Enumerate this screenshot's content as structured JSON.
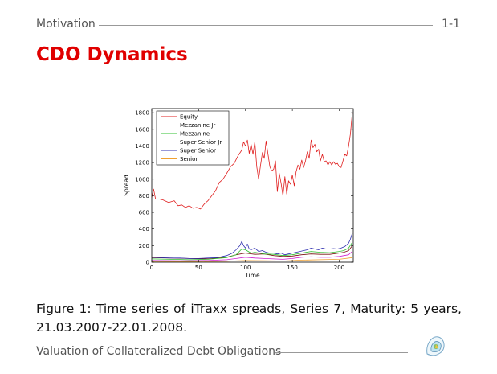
{
  "header": {
    "section": "Motivation",
    "page_number": "1-1"
  },
  "slide": {
    "title": "CDO Dynamics"
  },
  "figure": {
    "caption": "Figure 1: Time series of iTraxx spreads, Series 7, Maturity: 5 years, 21.03.2007-22.01.2008."
  },
  "footer": {
    "title": "Valuation of Collateralized Debt Obligations"
  },
  "colors": {
    "title": "#e00000",
    "equity": "#e02020",
    "mezzanine_jr": "#7a1010",
    "mezzanine": "#30c030",
    "super_senior_jr": "#d020d0",
    "super_senior": "#3030b0",
    "senior": "#f0a030"
  },
  "chart_data": {
    "type": "line",
    "xlabel": "Time",
    "ylabel": "Spread",
    "xlim": [
      0,
      215
    ],
    "ylim": [
      0,
      1850
    ],
    "xticks": [
      0,
      50,
      100,
      150,
      200
    ],
    "yticks": [
      0,
      200,
      400,
      600,
      800,
      1000,
      1200,
      1400,
      1600,
      1800
    ],
    "grid": false,
    "legend_position": "top-left",
    "series": [
      {
        "name": "Equity",
        "color": "#e02020",
        "points": [
          [
            0,
            780
          ],
          [
            2,
            880
          ],
          [
            4,
            760
          ],
          [
            8,
            760
          ],
          [
            12,
            750
          ],
          [
            18,
            720
          ],
          [
            24,
            740
          ],
          [
            28,
            680
          ],
          [
            32,
            690
          ],
          [
            36,
            660
          ],
          [
            40,
            680
          ],
          [
            44,
            650
          ],
          [
            48,
            660
          ],
          [
            52,
            640
          ],
          [
            56,
            700
          ],
          [
            60,
            740
          ],
          [
            64,
            800
          ],
          [
            68,
            860
          ],
          [
            72,
            960
          ],
          [
            76,
            1000
          ],
          [
            80,
            1070
          ],
          [
            84,
            1150
          ],
          [
            88,
            1190
          ],
          [
            92,
            1280
          ],
          [
            96,
            1350
          ],
          [
            98,
            1450
          ],
          [
            100,
            1400
          ],
          [
            102,
            1470
          ],
          [
            104,
            1310
          ],
          [
            106,
            1420
          ],
          [
            108,
            1300
          ],
          [
            110,
            1450
          ],
          [
            112,
            1150
          ],
          [
            114,
            1000
          ],
          [
            116,
            1160
          ],
          [
            118,
            1320
          ],
          [
            120,
            1250
          ],
          [
            122,
            1460
          ],
          [
            124,
            1300
          ],
          [
            126,
            1150
          ],
          [
            128,
            1100
          ],
          [
            130,
            1120
          ],
          [
            132,
            1220
          ],
          [
            134,
            850
          ],
          [
            136,
            1070
          ],
          [
            138,
            950
          ],
          [
            140,
            800
          ],
          [
            142,
            1030
          ],
          [
            144,
            820
          ],
          [
            146,
            980
          ],
          [
            148,
            940
          ],
          [
            150,
            1050
          ],
          [
            152,
            920
          ],
          [
            154,
            1090
          ],
          [
            156,
            1170
          ],
          [
            158,
            1120
          ],
          [
            160,
            1230
          ],
          [
            162,
            1140
          ],
          [
            164,
            1220
          ],
          [
            166,
            1330
          ],
          [
            168,
            1250
          ],
          [
            170,
            1470
          ],
          [
            172,
            1380
          ],
          [
            174,
            1420
          ],
          [
            176,
            1330
          ],
          [
            178,
            1360
          ],
          [
            180,
            1220
          ],
          [
            182,
            1300
          ],
          [
            184,
            1210
          ],
          [
            186,
            1220
          ],
          [
            188,
            1170
          ],
          [
            190,
            1210
          ],
          [
            192,
            1170
          ],
          [
            194,
            1210
          ],
          [
            196,
            1180
          ],
          [
            198,
            1190
          ],
          [
            200,
            1150
          ],
          [
            202,
            1140
          ],
          [
            204,
            1220
          ],
          [
            206,
            1300
          ],
          [
            208,
            1280
          ],
          [
            210,
            1400
          ],
          [
            212,
            1550
          ],
          [
            214,
            1800
          ]
        ]
      },
      {
        "name": "Mezzanine Jr",
        "color": "#7a1010",
        "points": [
          [
            0,
            55
          ],
          [
            20,
            50
          ],
          [
            40,
            45
          ],
          [
            60,
            40
          ],
          [
            80,
            60
          ],
          [
            90,
            90
          ],
          [
            100,
            110
          ],
          [
            110,
            95
          ],
          [
            120,
            100
          ],
          [
            130,
            80
          ],
          [
            140,
            70
          ],
          [
            150,
            75
          ],
          [
            160,
            90
          ],
          [
            170,
            100
          ],
          [
            180,
            95
          ],
          [
            190,
            95
          ],
          [
            200,
            110
          ],
          [
            205,
            120
          ],
          [
            210,
            140
          ],
          [
            214,
            200
          ]
        ]
      },
      {
        "name": "Mezzanine",
        "color": "#30c030",
        "points": [
          [
            0,
            40
          ],
          [
            20,
            35
          ],
          [
            40,
            30
          ],
          [
            60,
            35
          ],
          [
            80,
            55
          ],
          [
            90,
            90
          ],
          [
            96,
            160
          ],
          [
            100,
            150
          ],
          [
            106,
            110
          ],
          [
            110,
            120
          ],
          [
            120,
            100
          ],
          [
            130,
            95
          ],
          [
            140,
            80
          ],
          [
            150,
            90
          ],
          [
            160,
            110
          ],
          [
            170,
            130
          ],
          [
            180,
            120
          ],
          [
            190,
            115
          ],
          [
            200,
            130
          ],
          [
            205,
            140
          ],
          [
            210,
            170
          ],
          [
            214,
            240
          ]
        ]
      },
      {
        "name": "Super Senior Jr",
        "color": "#d020d0",
        "points": [
          [
            0,
            20
          ],
          [
            30,
            18
          ],
          [
            60,
            20
          ],
          [
            80,
            30
          ],
          [
            90,
            45
          ],
          [
            100,
            60
          ],
          [
            110,
            50
          ],
          [
            120,
            45
          ],
          [
            130,
            40
          ],
          [
            140,
            35
          ],
          [
            150,
            45
          ],
          [
            160,
            60
          ],
          [
            170,
            65
          ],
          [
            180,
            60
          ],
          [
            190,
            60
          ],
          [
            200,
            70
          ],
          [
            210,
            90
          ],
          [
            214,
            130
          ]
        ]
      },
      {
        "name": "Super Senior",
        "color": "#3030b0",
        "points": [
          [
            0,
            60
          ],
          [
            10,
            55
          ],
          [
            20,
            50
          ],
          [
            30,
            50
          ],
          [
            40,
            45
          ],
          [
            50,
            45
          ],
          [
            60,
            50
          ],
          [
            70,
            55
          ],
          [
            80,
            80
          ],
          [
            86,
            110
          ],
          [
            90,
            150
          ],
          [
            94,
            200
          ],
          [
            96,
            250
          ],
          [
            98,
            200
          ],
          [
            100,
            170
          ],
          [
            102,
            220
          ],
          [
            104,
            160
          ],
          [
            106,
            150
          ],
          [
            110,
            170
          ],
          [
            114,
            130
          ],
          [
            118,
            140
          ],
          [
            122,
            120
          ],
          [
            126,
            110
          ],
          [
            130,
            110
          ],
          [
            134,
            100
          ],
          [
            138,
            110
          ],
          [
            142,
            90
          ],
          [
            146,
            100
          ],
          [
            150,
            110
          ],
          [
            154,
            120
          ],
          [
            158,
            130
          ],
          [
            162,
            140
          ],
          [
            166,
            150
          ],
          [
            170,
            170
          ],
          [
            174,
            160
          ],
          [
            178,
            150
          ],
          [
            182,
            170
          ],
          [
            186,
            160
          ],
          [
            190,
            160
          ],
          [
            194,
            165
          ],
          [
            198,
            160
          ],
          [
            202,
            170
          ],
          [
            206,
            190
          ],
          [
            210,
            230
          ],
          [
            212,
            280
          ],
          [
            214,
            350
          ]
        ]
      },
      {
        "name": "Senior",
        "color": "#f0a030",
        "points": [
          [
            0,
            10
          ],
          [
            40,
            8
          ],
          [
            80,
            12
          ],
          [
            100,
            20
          ],
          [
            120,
            18
          ],
          [
            140,
            15
          ],
          [
            160,
            25
          ],
          [
            180,
            30
          ],
          [
            200,
            35
          ],
          [
            214,
            55
          ]
        ]
      }
    ]
  }
}
